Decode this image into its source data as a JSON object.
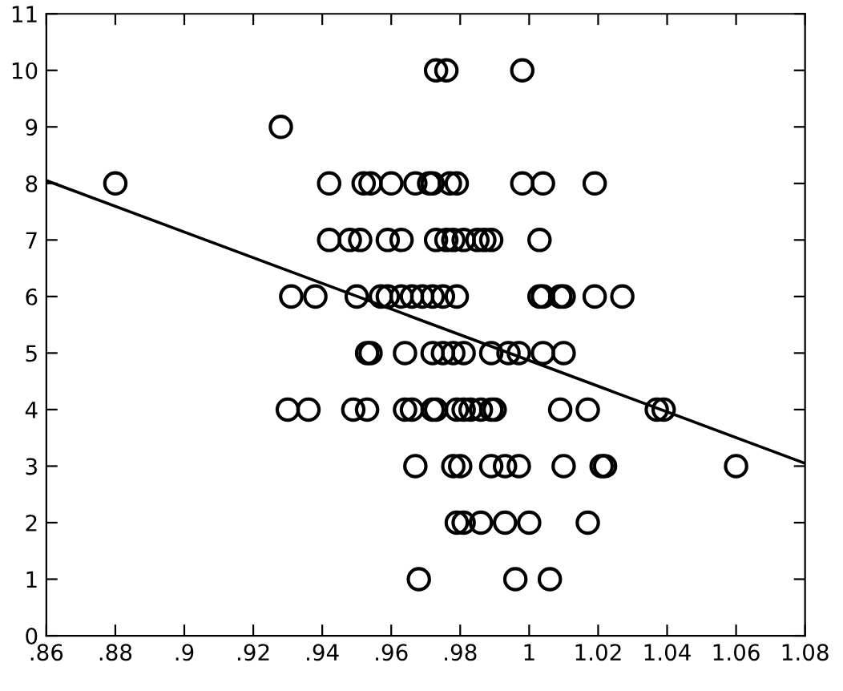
{
  "chart_data": {
    "type": "scatter",
    "xlim": [
      0.86,
      1.08
    ],
    "ylim": [
      0,
      11
    ],
    "xticks": [
      {
        "value": 0.86,
        "label": ".86"
      },
      {
        "value": 0.88,
        "label": ".88"
      },
      {
        "value": 0.9,
        "label": ".9"
      },
      {
        "value": 0.92,
        "label": ".92"
      },
      {
        "value": 0.94,
        "label": ".94"
      },
      {
        "value": 0.96,
        "label": ".96"
      },
      {
        "value": 0.98,
        "label": ".98"
      },
      {
        "value": 1.0,
        "label": "1"
      },
      {
        "value": 1.02,
        "label": "1.02"
      },
      {
        "value": 1.04,
        "label": "1.04"
      },
      {
        "value": 1.06,
        "label": "1.06"
      },
      {
        "value": 1.08,
        "label": "1.08"
      }
    ],
    "yticks": [
      0,
      1,
      2,
      3,
      4,
      5,
      6,
      7,
      8,
      9,
      10,
      11
    ],
    "grid": false,
    "legend": false,
    "marker": "circle",
    "series": [
      {
        "color": "#000000",
        "x": [
          0.973,
          0.976,
          0.998,
          0.928,
          0.88,
          0.942,
          0.952,
          0.954,
          0.96,
          0.967,
          0.971,
          0.972,
          0.977,
          0.979,
          0.998,
          1.004,
          1.019,
          0.942,
          0.948,
          0.951,
          0.959,
          0.963,
          0.973,
          0.976,
          0.978,
          0.981,
          0.985,
          0.987,
          0.989,
          1.003,
          0.931,
          0.938,
          0.95,
          0.957,
          0.959,
          0.963,
          0.966,
          0.969,
          0.972,
          0.975,
          0.979,
          1.003,
          1.004,
          1.009,
          1.01,
          1.019,
          1.027,
          0.953,
          0.954,
          0.964,
          0.972,
          0.975,
          0.978,
          0.981,
          0.989,
          0.994,
          0.997,
          1.004,
          1.01,
          0.93,
          0.936,
          0.949,
          0.953,
          0.964,
          0.966,
          0.972,
          0.973,
          0.979,
          0.981,
          0.983,
          0.986,
          0.989,
          0.99,
          1.009,
          1.017,
          1.037,
          1.039,
          0.967,
          0.978,
          0.98,
          0.989,
          0.993,
          0.997,
          1.01,
          1.021,
          1.022,
          1.06,
          0.979,
          0.981,
          0.986,
          0.993,
          1.0,
          1.017,
          0.968,
          0.996,
          1.006
        ],
        "values": [
          10,
          10,
          10,
          9,
          8,
          8,
          8,
          8,
          8,
          8,
          8,
          8,
          8,
          8,
          8,
          8,
          8,
          7,
          7,
          7,
          7,
          7,
          7,
          7,
          7,
          7,
          7,
          7,
          7,
          7,
          6,
          6,
          6,
          6,
          6,
          6,
          6,
          6,
          6,
          6,
          6,
          6,
          6,
          6,
          6,
          6,
          6,
          5,
          5,
          5,
          5,
          5,
          5,
          5,
          5,
          5,
          5,
          5,
          5,
          4,
          4,
          4,
          4,
          4,
          4,
          4,
          4,
          4,
          4,
          4,
          4,
          4,
          4,
          4,
          4,
          4,
          4,
          3,
          3,
          3,
          3,
          3,
          3,
          3,
          3,
          3,
          3,
          2,
          2,
          2,
          2,
          2,
          2,
          1,
          1,
          1
        ]
      },
      {
        "type": "line",
        "color": "#000000",
        "x": [
          0.86,
          1.08
        ],
        "values": [
          8.05,
          3.05
        ],
        "marker": "none",
        "line_style": "solid"
      }
    ]
  }
}
